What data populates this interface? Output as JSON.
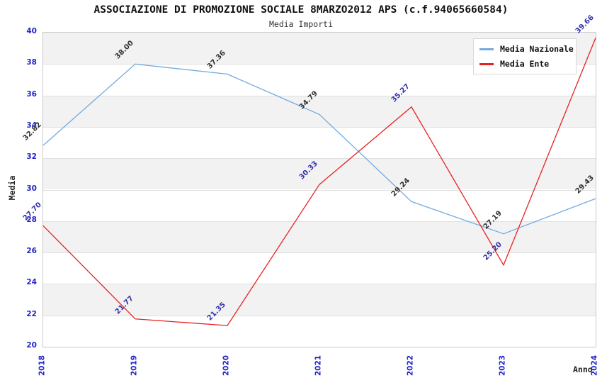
{
  "chart": {
    "title": "ASSOCIAZIONE DI PROMOZIONE SOCIALE 8MARZO2012 APS (c.f.94065660584)",
    "subtitle": "Media Importi"
  },
  "chart_data": {
    "type": "line",
    "x": [
      "2018",
      "2019",
      "2020",
      "2021",
      "2022",
      "2023",
      "2024"
    ],
    "series": [
      {
        "name": "Media Nazionale",
        "color": "#74AADF",
        "label_color": "#333333",
        "values": [
          32.82,
          38.0,
          37.36,
          34.79,
          29.24,
          27.19,
          29.43
        ]
      },
      {
        "name": "Media Ente",
        "color": "#E62222",
        "label_color": "#3333AA",
        "values": [
          27.7,
          21.77,
          21.35,
          30.33,
          35.27,
          25.2,
          39.66
        ]
      }
    ],
    "xlabel": "Anno",
    "ylabel": "Media",
    "ylim": [
      20,
      40
    ],
    "ytick_step": 2,
    "legend_position": "top-right",
    "grid": "horizontal-alternating-bands",
    "colors": {
      "tick_text": "#2323CC",
      "band_fill": "#F2F2F2",
      "gridline": "#E0E0E0",
      "plot_frame": "#C9C9C9"
    }
  }
}
